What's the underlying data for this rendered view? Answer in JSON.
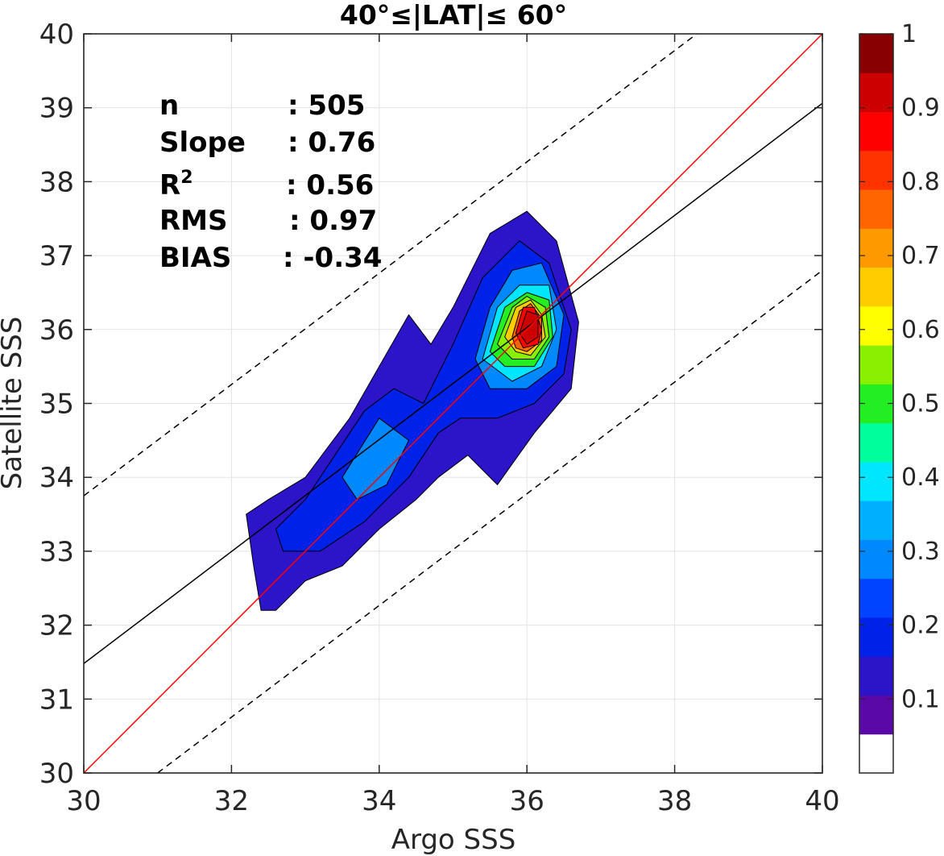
{
  "chart_data": {
    "type": "contour",
    "title": "40°≤|LAT|≤ 60°",
    "xlabel": "Argo SSS",
    "ylabel": "Satellite SSS",
    "xlim": [
      30,
      40
    ],
    "ylim": [
      30,
      40
    ],
    "x_ticks": [
      "30",
      "32",
      "34",
      "36",
      "38",
      "40"
    ],
    "y_ticks": [
      "30",
      "31",
      "32",
      "33",
      "34",
      "35",
      "36",
      "37",
      "38",
      "39",
      "40"
    ],
    "grid": true,
    "stats": [
      {
        "label": "n",
        "value": ": 505"
      },
      {
        "label": "Slope",
        "value": ": 0.76"
      },
      {
        "label": "R",
        "sup": "2",
        "value": ": 0.56"
      },
      {
        "label": "RMS",
        "value": ": 0.97"
      },
      {
        "label": "BIAS",
        "value": ": -0.34"
      }
    ],
    "lines": {
      "one_to_one": {
        "x": [
          30,
          40
        ],
        "y": [
          30,
          40
        ],
        "color": "#ff0000"
      },
      "regression": {
        "x": [
          30,
          40
        ],
        "y": [
          31.48,
          39.06
        ],
        "color": "#000000"
      },
      "upper_bound": {
        "x": [
          30,
          38.3
        ],
        "y": [
          33.75,
          40
        ],
        "color": "#000000",
        "style": "dashed"
      },
      "lower_bound": {
        "x": [
          31.0,
          40
        ],
        "y": [
          30,
          36.8
        ],
        "color": "#000000",
        "style": "dashed"
      }
    },
    "density_peak": {
      "x": 36.05,
      "y": 36.05,
      "value": 1.0
    },
    "colorbar": {
      "range": [
        0,
        1
      ],
      "tick_labels": [
        "0.1",
        "0.2",
        "0.3",
        "0.4",
        "0.5",
        "0.6",
        "0.7",
        "0.8",
        "0.9",
        "1"
      ],
      "tick_values": [
        0.1,
        0.2,
        0.3,
        0.4,
        0.5,
        0.6,
        0.7,
        0.8,
        0.9,
        1.0
      ],
      "bands": [
        "#ffffff",
        "#5a08a8",
        "#2c14c8",
        "#0022e8",
        "#0044ff",
        "#0088ff",
        "#00b0ff",
        "#00e6ff",
        "#00ff9c",
        "#22ee22",
        "#88f000",
        "#ffff00",
        "#ffcc00",
        "#ff9900",
        "#ff6600",
        "#ff3300",
        "#ff0000",
        "#cc0000",
        "#880000"
      ]
    },
    "contour_levels": [
      {
        "level": 0.1,
        "color": "#2c14c8",
        "poly": [
          [
            32.2,
            33.5
          ],
          [
            32.5,
            33.7
          ],
          [
            33.0,
            34.0
          ],
          [
            33.6,
            34.8
          ],
          [
            34.0,
            35.5
          ],
          [
            34.4,
            36.2
          ],
          [
            34.7,
            35.8
          ],
          [
            35.0,
            36.3
          ],
          [
            35.5,
            37.3
          ],
          [
            36.0,
            37.6
          ],
          [
            36.4,
            37.2
          ],
          [
            36.7,
            36.1
          ],
          [
            36.6,
            35.2
          ],
          [
            36.1,
            34.6
          ],
          [
            35.6,
            33.9
          ],
          [
            35.2,
            34.3
          ],
          [
            34.8,
            34.0
          ],
          [
            34.5,
            33.7
          ],
          [
            34.0,
            33.3
          ],
          [
            33.5,
            32.8
          ],
          [
            33.0,
            32.6
          ],
          [
            32.6,
            32.2
          ],
          [
            32.4,
            32.2
          ],
          [
            32.3,
            32.8
          ]
        ]
      },
      {
        "level": 0.2,
        "color": "#0022e8",
        "poly": [
          [
            32.6,
            33.3
          ],
          [
            33.0,
            33.7
          ],
          [
            33.4,
            34.3
          ],
          [
            33.8,
            34.9
          ],
          [
            34.2,
            35.2
          ],
          [
            34.6,
            35.0
          ],
          [
            35.0,
            35.8
          ],
          [
            35.4,
            36.7
          ],
          [
            35.9,
            37.2
          ],
          [
            36.3,
            36.9
          ],
          [
            36.6,
            36.0
          ],
          [
            36.5,
            35.4
          ],
          [
            36.1,
            35.0
          ],
          [
            35.6,
            34.8
          ],
          [
            35.1,
            34.8
          ],
          [
            34.8,
            34.6
          ],
          [
            34.4,
            34.0
          ],
          [
            33.8,
            33.4
          ],
          [
            33.2,
            33.0
          ],
          [
            32.7,
            33.0
          ]
        ]
      },
      {
        "level": 0.3,
        "color": "#0088ff",
        "poly": [
          [
            33.5,
            34.0
          ],
          [
            34.0,
            34.8
          ],
          [
            34.4,
            34.5
          ],
          [
            34.1,
            33.9
          ],
          [
            33.7,
            33.7
          ]
        ]
      },
      {
        "level": 0.3,
        "color": "#0088ff",
        "poly": [
          [
            35.3,
            35.6
          ],
          [
            35.5,
            36.3
          ],
          [
            35.8,
            36.8
          ],
          [
            36.2,
            36.9
          ],
          [
            36.5,
            36.2
          ],
          [
            36.4,
            35.5
          ],
          [
            36.0,
            35.2
          ],
          [
            35.5,
            35.2
          ]
        ]
      },
      {
        "level": 0.4,
        "color": "#00e6ff",
        "poly": [
          [
            35.4,
            35.6
          ],
          [
            35.6,
            36.3
          ],
          [
            35.9,
            36.6
          ],
          [
            36.3,
            36.6
          ],
          [
            36.4,
            36.0
          ],
          [
            36.2,
            35.5
          ],
          [
            35.8,
            35.3
          ]
        ]
      },
      {
        "level": 0.5,
        "color": "#22ee22",
        "poly": [
          [
            35.5,
            35.7
          ],
          [
            35.7,
            36.3
          ],
          [
            36.0,
            36.5
          ],
          [
            36.3,
            36.4
          ],
          [
            36.35,
            35.9
          ],
          [
            36.1,
            35.5
          ],
          [
            35.7,
            35.5
          ]
        ]
      },
      {
        "level": 0.6,
        "color": "#88f000",
        "poly": [
          [
            35.6,
            35.8
          ],
          [
            35.8,
            36.3
          ],
          [
            36.0,
            36.45
          ],
          [
            36.25,
            36.3
          ],
          [
            36.3,
            35.9
          ],
          [
            36.1,
            35.6
          ],
          [
            35.8,
            35.6
          ]
        ]
      },
      {
        "level": 0.7,
        "color": "#ffcc00",
        "poly": [
          [
            35.7,
            35.9
          ],
          [
            35.85,
            36.3
          ],
          [
            36.05,
            36.4
          ],
          [
            36.2,
            36.2
          ],
          [
            36.25,
            35.9
          ],
          [
            36.05,
            35.65
          ],
          [
            35.85,
            35.7
          ]
        ]
      },
      {
        "level": 0.8,
        "color": "#ff6600",
        "poly": [
          [
            35.8,
            35.9
          ],
          [
            35.9,
            36.25
          ],
          [
            36.05,
            36.35
          ],
          [
            36.2,
            36.15
          ],
          [
            36.2,
            35.85
          ],
          [
            36.0,
            35.7
          ],
          [
            35.85,
            35.75
          ]
        ]
      },
      {
        "level": 0.9,
        "color": "#ff0000",
        "poly": [
          [
            35.85,
            35.95
          ],
          [
            35.95,
            36.3
          ],
          [
            36.1,
            36.3
          ],
          [
            36.2,
            36.0
          ],
          [
            36.15,
            35.8
          ],
          [
            35.95,
            35.75
          ]
        ]
      },
      {
        "level": 1.0,
        "color": "#cc0000",
        "poly": [
          [
            35.9,
            35.95
          ],
          [
            36.0,
            36.25
          ],
          [
            36.15,
            36.2
          ],
          [
            36.15,
            35.9
          ],
          [
            36.0,
            35.8
          ]
        ]
      }
    ]
  }
}
